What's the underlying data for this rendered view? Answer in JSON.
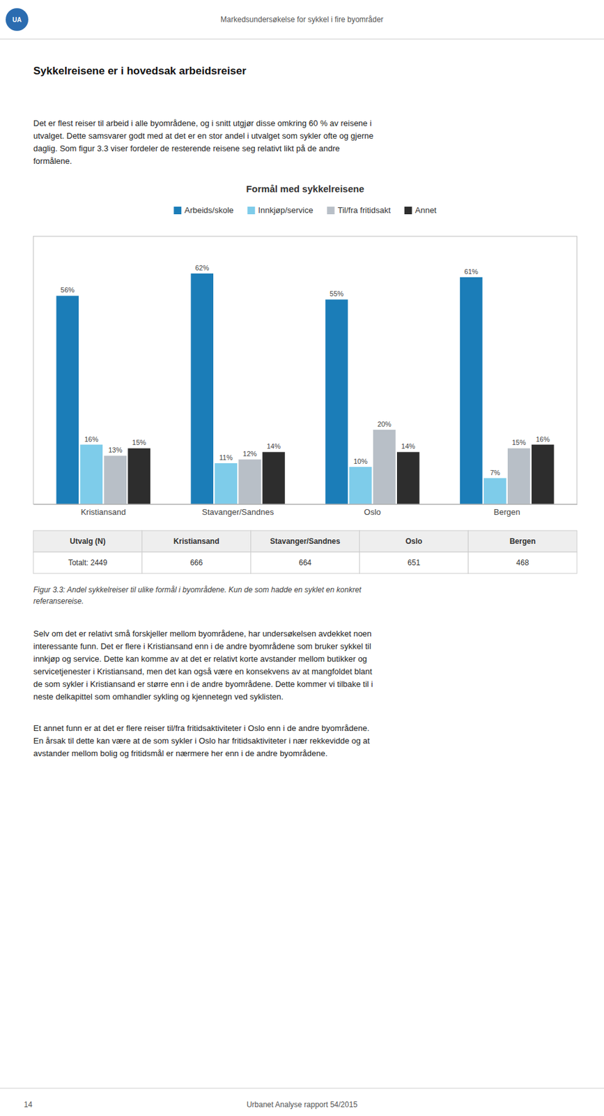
{
  "chart_data": {
    "type": "bar",
    "title": "Formål med sykkelreisene",
    "categories": [
      "Kristiansand",
      "Stavanger/Sandnes",
      "Oslo",
      "Bergen"
    ],
    "series": [
      {
        "name": "Arbeids/skole",
        "color": "#1b7db8",
        "values": [
          56,
          62,
          55,
          61
        ],
        "value_labels": [
          "56%",
          "62%",
          "55%",
          "61%"
        ]
      },
      {
        "name": "Innkjøp/service",
        "color": "#7eccea",
        "values": [
          16,
          11,
          10,
          7
        ],
        "value_labels": [
          "16%",
          "11%",
          "10%",
          "7%"
        ]
      },
      {
        "name": "Til/fra fritidsakt",
        "color": "#b8bfc7",
        "values": [
          13,
          12,
          20,
          15
        ],
        "value_labels": [
          "13%",
          "12%",
          "20%",
          "15%"
        ]
      },
      {
        "name": "Annet",
        "color": "#2d2d2d",
        "values": [
          15,
          14,
          14,
          16
        ],
        "value_labels": [
          "15%",
          "14%",
          "14%",
          "16%"
        ]
      }
    ],
    "ylim": [
      0,
      72
    ],
    "grid": false,
    "legend": "top",
    "data_labels": true,
    "tick_labels": "x"
  },
  "header": {
    "logo": "UA",
    "logo_color": "#2b6cb0",
    "text": "Markedsundersøkelse for sykkel i fire byområder"
  },
  "heading": "Sykkelreisene er i hovedsak arbeidsreiser",
  "para1": [
    "Det er flest reiser til arbeid i alle byområdene, og i snitt utgjør disse omkring 60 % av reisene i",
    "utvalget. Dette samsvarer godt med at det er en stor andel i utvalget som sykler ofte og gjerne",
    "daglig. Som figur 3.3 viser fordeler de resterende reisene seg relativt likt på de andre",
    "formålene."
  ],
  "table": {
    "headers": [
      "Utvalg (N)",
      "Kristiansand",
      "Stavanger/Sandnes",
      "Oslo",
      "Bergen"
    ],
    "rows": [
      [
        "Totalt: 2449",
        "666",
        "664",
        "651",
        "468"
      ]
    ]
  },
  "caption": [
    "Figur 3.3: Andel sykkelreiser til ulike formål i byområdene. Kun de som hadde en syklet en konkret",
    "referansereise."
  ],
  "para2": [
    "Selv om det er relativt små forskjeller mellom byområdene, har undersøkelsen avdekket noen",
    "interessante funn. Det er flere i Kristiansand enn i de andre byområdene som bruker sykkel til",
    "innkjøp og service. Dette kan komme av at det er relativt korte avstander mellom butikker og",
    "servicetjenester i Kristiansand, men det kan også være en konsekvens av at mangfoldet blant",
    "de som sykler i Kristiansand er større enn i de andre byområdene. Dette kommer vi tilbake til i",
    "neste delkapittel som omhandler sykling og kjennetegn ved syklisten."
  ],
  "para3": [
    "Et annet funn er at det er flere reiser til/fra fritidsaktiviteter i Oslo enn i de andre byområdene.",
    "En årsak til dette kan være at de som sykler i Oslo har fritidsaktiviteter i nær rekkevidde og at",
    "avstander mellom bolig og fritidsmål er nærmere her enn i de andre byområdene."
  ],
  "footer": {
    "page": "14",
    "text": "Urbanet Analyse rapport 54/2015"
  }
}
